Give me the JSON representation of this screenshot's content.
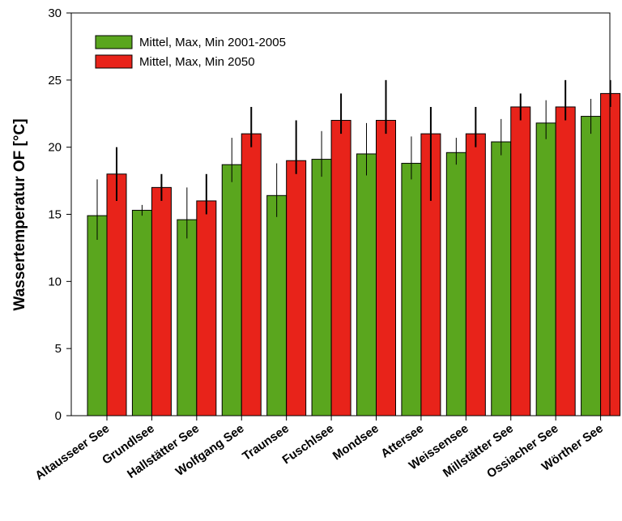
{
  "chart_data": {
    "type": "bar",
    "title": "",
    "xlabel": "",
    "ylabel": "Wassertemperatur OF [°C]",
    "ylim": [
      0,
      30
    ],
    "yticks": [
      0,
      5,
      10,
      15,
      20,
      25,
      30
    ],
    "grid": false,
    "legend_position": "top-left",
    "categories": [
      "Altausseer See",
      "Grundlsee",
      "Hallstätter See",
      "Wolfgang See",
      "Traunsee",
      "Fuschlsee",
      "Mondsee",
      "Attersee",
      "Weissensee",
      "Millstätter See",
      "Ossiacher See",
      "Wörther See"
    ],
    "series": [
      {
        "name": "Mittel, Max, Min 2001-2005",
        "color": "#5aa61e",
        "values": [
          14.9,
          15.3,
          14.6,
          18.7,
          16.4,
          19.1,
          19.5,
          18.8,
          19.6,
          20.4,
          21.8,
          22.3
        ],
        "max": [
          17.6,
          15.7,
          17.0,
          20.7,
          18.8,
          21.2,
          21.8,
          20.8,
          20.7,
          22.1,
          23.5,
          23.6
        ],
        "min": [
          13.1,
          14.9,
          13.2,
          17.4,
          14.8,
          17.8,
          17.9,
          17.6,
          18.7,
          19.4,
          20.6,
          21.0
        ]
      },
      {
        "name": "Mittel, Max, Min 2050",
        "color": "#e8231a",
        "values": [
          18.0,
          17.0,
          16.0,
          21.0,
          19.0,
          22.0,
          22.0,
          21.0,
          21.0,
          23.0,
          23.0,
          24.0
        ],
        "max": [
          20.0,
          18.0,
          18.0,
          23.0,
          22.0,
          24.0,
          25.0,
          23.0,
          23.0,
          24.0,
          25.0,
          25.0
        ],
        "min": [
          16.0,
          16.0,
          15.0,
          20.0,
          18.0,
          21.0,
          21.0,
          16.0,
          20.0,
          22.0,
          22.0,
          23.0
        ]
      }
    ]
  }
}
